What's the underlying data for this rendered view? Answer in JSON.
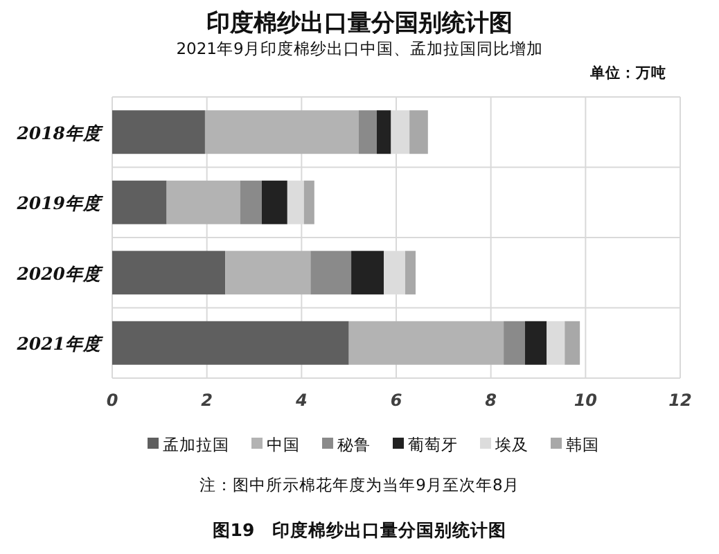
{
  "chart_data": {
    "type": "bar",
    "orientation": "horizontal",
    "stacked": true,
    "title": "印度棉纱出口量分国别统计图",
    "subtitle": "2021年9月印度棉纱出口中国、孟加拉国同比增加",
    "annotations": [
      "单位：万吨",
      "注：图中所示棉花年度为当年9月至次年8月",
      "图19　印度棉纱出口量分国别统计图"
    ],
    "categories": [
      "2018年度",
      "2019年度",
      "2020年度",
      "2021年度"
    ],
    "series": [
      {
        "name": "孟加拉国",
        "color": "#5f5f5f",
        "values": [
          1.96,
          1.15,
          2.39,
          5.0
        ]
      },
      {
        "name": "中国",
        "color": "#b3b3b3",
        "values": [
          3.25,
          1.55,
          1.8,
          3.27
        ]
      },
      {
        "name": "秘鲁",
        "color": "#8a8a8a",
        "values": [
          0.38,
          0.46,
          0.86,
          0.45
        ]
      },
      {
        "name": "葡萄牙",
        "color": "#222222",
        "values": [
          0.3,
          0.54,
          0.69,
          0.46
        ]
      },
      {
        "name": "埃及",
        "color": "#dcdcdc",
        "values": [
          0.39,
          0.35,
          0.45,
          0.38
        ]
      },
      {
        "name": "韩国",
        "color": "#a8a8a8",
        "values": [
          0.39,
          0.22,
          0.22,
          0.32
        ]
      }
    ],
    "xlim": [
      0,
      12
    ],
    "xticks": [
      0,
      2,
      4,
      6,
      8,
      10,
      12
    ],
    "grid": true,
    "legend": "bottom"
  }
}
